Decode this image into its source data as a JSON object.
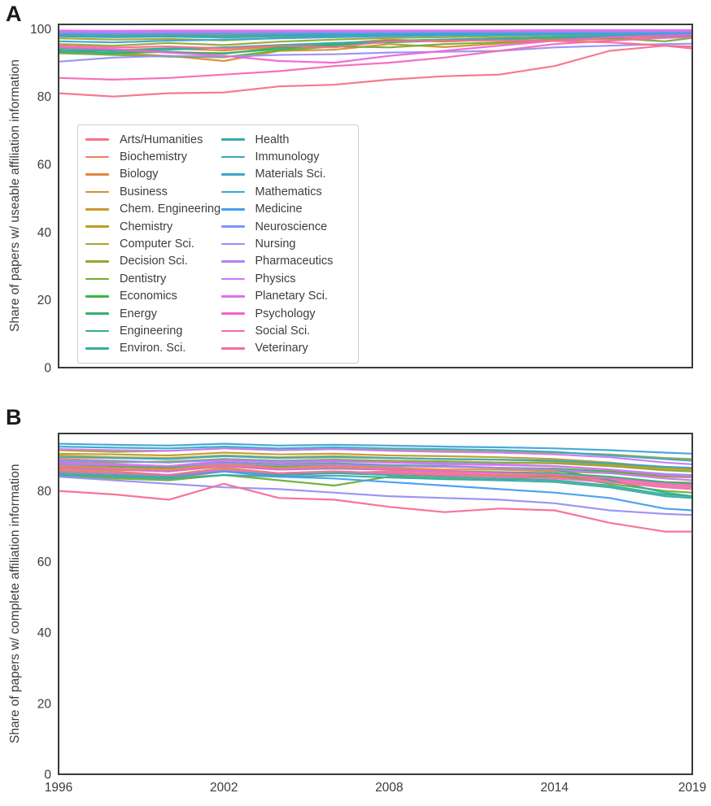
{
  "figure": {
    "panel_a": {
      "letter": "A"
    },
    "panel_b": {
      "letter": "B"
    },
    "colors": {
      "axis_border": "#3a3a3a",
      "text": "#3b3b3b",
      "legend_border": "#cccccc",
      "background": "#ffffff"
    }
  },
  "chart_data": [
    {
      "id": "panel_a",
      "type": "line",
      "title": "",
      "xlabel": "",
      "ylabel": "Share of papers w/ useable affiliation information",
      "grid": false,
      "legend_position": "upper left inside plot",
      "x": [
        1996,
        1998,
        2000,
        2002,
        2004,
        2006,
        2008,
        2010,
        2012,
        2014,
        2016,
        2018,
        2019
      ],
      "xlim": [
        1996,
        2019
      ],
      "ylim": [
        0,
        101.3
      ],
      "yticks": [
        0,
        20,
        40,
        60,
        80,
        100
      ],
      "xticks": [],
      "series": [
        {
          "name": "Arts/Humanities",
          "color": "#f77189",
          "values": [
            81,
            80,
            81,
            81.2,
            83,
            83.5,
            85,
            86,
            86.5,
            89,
            93.5,
            95,
            94.8
          ]
        },
        {
          "name": "Biochemistry",
          "color": "#ef7e5e",
          "values": [
            98.5,
            98.4,
            98.5,
            98.5,
            98.6,
            98.6,
            98.7,
            98.7,
            98.8,
            98.8,
            98.8,
            98.9,
            98.9
          ]
        },
        {
          "name": "Biology",
          "color": "#e5863b",
          "values": [
            94.5,
            93.8,
            94.2,
            93.6,
            94.8,
            95.6,
            96.8,
            96.2,
            96.8,
            97.2,
            97.6,
            98,
            98
          ]
        },
        {
          "name": "Business",
          "color": "#d78f33",
          "values": [
            93,
            92.8,
            92,
            90.5,
            93.5,
            93.8,
            95.5,
            94.6,
            95.6,
            96.5,
            97,
            97.5,
            97.6
          ]
        },
        {
          "name": "Chem. Engineering",
          "color": "#c9982e",
          "values": [
            98.4,
            98.2,
            98.3,
            98.4,
            98.5,
            98.5,
            98.6,
            98.6,
            98.7,
            98.7,
            98.7,
            98.8,
            98.8
          ]
        },
        {
          "name": "Chemistry",
          "color": "#ba9e2b",
          "values": [
            99,
            98.9,
            99,
            99,
            99.1,
            99.1,
            99.1,
            99.2,
            99.2,
            99.2,
            99.2,
            99.2,
            99.2
          ]
        },
        {
          "name": "Computer Sci.",
          "color": "#a8a42d",
          "values": [
            97.2,
            96.8,
            97,
            96.6,
            97.3,
            97.8,
            98,
            98.2,
            98.3,
            98.4,
            98.5,
            98.5,
            98.5
          ]
        },
        {
          "name": "Decision Sci.",
          "color": "#92a930",
          "values": [
            95.5,
            95,
            95.8,
            95.2,
            96.2,
            96.8,
            97.3,
            97.5,
            97.8,
            98,
            98.2,
            98.3,
            98.3
          ]
        },
        {
          "name": "Dentistry",
          "color": "#70ae33",
          "values": [
            92.8,
            92.3,
            91.8,
            91.6,
            93.6,
            94.8,
            94.5,
            95.5,
            96,
            96.8,
            97.3,
            96.3,
            97.3
          ]
        },
        {
          "name": "Economics",
          "color": "#3db241",
          "values": [
            93.5,
            92.8,
            93.2,
            92.6,
            94.5,
            95,
            96.5,
            96.8,
            97.2,
            97.5,
            97.8,
            98,
            98
          ]
        },
        {
          "name": "Energy",
          "color": "#33b26f",
          "values": [
            93.2,
            93.8,
            93,
            92.8,
            94,
            95.5,
            96,
            96.5,
            97,
            97.5,
            97.8,
            98,
            98.1
          ]
        },
        {
          "name": "Engineering",
          "color": "#34af88",
          "values": [
            97.8,
            97.5,
            97.7,
            97.4,
            97.8,
            98,
            98.2,
            98.3,
            98.4,
            98.5,
            98.6,
            98.6,
            98.6
          ]
        },
        {
          "name": "Environ. Sci.",
          "color": "#36ad9a",
          "values": [
            94,
            93.5,
            94.2,
            94.5,
            95,
            95.8,
            96.3,
            96.8,
            97.2,
            97.5,
            97.8,
            98,
            98
          ]
        },
        {
          "name": "Health",
          "color": "#36aca9",
          "values": [
            93.3,
            93,
            93.8,
            94.5,
            95.2,
            95.8,
            96.2,
            96.6,
            97,
            97.4,
            97.7,
            97.9,
            98
          ]
        },
        {
          "name": "Immunology",
          "color": "#38aab9",
          "values": [
            98.2,
            98,
            98.1,
            98,
            98.2,
            98.3,
            98.4,
            98.5,
            98.5,
            98.6,
            98.6,
            98.7,
            98.7
          ]
        },
        {
          "name": "Materials Sci.",
          "color": "#39a7c9",
          "values": [
            97.9,
            97.7,
            97.8,
            97.9,
            98,
            98.2,
            98.3,
            98.4,
            98.5,
            98.5,
            98.6,
            98.6,
            98.6
          ]
        },
        {
          "name": "Mathematics",
          "color": "#3ba4da",
          "values": [
            96.3,
            96,
            96.5,
            96.8,
            97.2,
            97.5,
            97.8,
            98,
            98.2,
            98.3,
            98.4,
            98.5,
            98.5
          ]
        },
        {
          "name": "Medicine",
          "color": "#429ef0",
          "values": [
            98.7,
            98.6,
            98.7,
            98.7,
            98.8,
            98.8,
            98.9,
            98.9,
            99,
            99,
            99,
            99,
            99
          ]
        },
        {
          "name": "Neuroscience",
          "color": "#7b98f4",
          "values": [
            98.9,
            98.8,
            98.9,
            98.9,
            99,
            99,
            99,
            99.1,
            99.1,
            99.1,
            99.1,
            99.2,
            99.2
          ]
        },
        {
          "name": "Nursing",
          "color": "#988ff4",
          "values": [
            90.3,
            91.5,
            92,
            91.8,
            92.3,
            92.5,
            93,
            93.2,
            93.5,
            94.5,
            95,
            95.5,
            95.6
          ]
        },
        {
          "name": "Pharmaceutics",
          "color": "#b183f4",
          "values": [
            99.1,
            99,
            99.1,
            99.1,
            99.2,
            99.2,
            99.2,
            99.3,
            99.3,
            99.3,
            99.3,
            99.3,
            99.3
          ]
        },
        {
          "name": "Physics",
          "color": "#ca79f4",
          "values": [
            99.3,
            99.2,
            99.3,
            99.3,
            99.3,
            99.4,
            99.4,
            99.4,
            99.4,
            99.4,
            99.4,
            99.4,
            99.4
          ]
        },
        {
          "name": "Planetary Sci.",
          "color": "#e16df3",
          "values": [
            99.5,
            99.4,
            99.5,
            99.5,
            99.5,
            99.5,
            99.5,
            99.5,
            99.5,
            99.6,
            99.6,
            99.6,
            99.6
          ]
        },
        {
          "name": "Psychology",
          "color": "#f263d3",
          "values": [
            94.5,
            94,
            93,
            92,
            90.5,
            90,
            92,
            93.5,
            95,
            96.5,
            97.5,
            98,
            98.2
          ]
        },
        {
          "name": "Social Sci.",
          "color": "#f668b5",
          "values": [
            85.5,
            85,
            85.5,
            86.5,
            87.5,
            89,
            90,
            91.5,
            93.5,
            95.5,
            96.5,
            97.3,
            97.5
          ]
        },
        {
          "name": "Veterinary",
          "color": "#f76d95",
          "values": [
            95,
            94.5,
            94.8,
            94.2,
            95,
            94.5,
            96.3,
            96.5,
            96.6,
            96.4,
            96,
            95,
            94.2
          ]
        }
      ]
    },
    {
      "id": "panel_b",
      "type": "line",
      "title": "",
      "xlabel": "",
      "ylabel": "Share of papers w/ complete affiliation information",
      "grid": false,
      "legend_position": "none",
      "x": [
        1996,
        1998,
        2000,
        2002,
        2004,
        2006,
        2008,
        2010,
        2012,
        2014,
        2016,
        2018,
        2019
      ],
      "xlim": [
        1996,
        2019
      ],
      "ylim": [
        0,
        96.2
      ],
      "yticks": [
        0,
        20,
        40,
        60,
        80
      ],
      "xticks": [
        1996,
        2002,
        2008,
        2014,
        2019
      ],
      "series": [
        {
          "name": "Arts/Humanities",
          "color": "#f77189",
          "values": [
            84.5,
            84,
            83.5,
            85.5,
            84.5,
            85,
            85.5,
            85,
            84.5,
            84,
            83,
            81.5,
            81
          ]
        },
        {
          "name": "Biochemistry",
          "color": "#ef7e5e",
          "values": [
            89,
            88.5,
            88,
            89,
            88.5,
            88.8,
            88.5,
            88.3,
            88,
            87.8,
            87.3,
            86.5,
            86.3
          ]
        },
        {
          "name": "Biology",
          "color": "#e5863b",
          "values": [
            87,
            86.5,
            86,
            87.5,
            86.5,
            87,
            86.5,
            86,
            86,
            85.5,
            85,
            84,
            83.8
          ]
        },
        {
          "name": "Business",
          "color": "#d78f33",
          "values": [
            86,
            85.5,
            84.5,
            86.5,
            85,
            85.5,
            85,
            84.5,
            84.3,
            84,
            83.5,
            82.5,
            82.3
          ]
        },
        {
          "name": "Chem. Engineering",
          "color": "#c9982e",
          "values": [
            90,
            89.5,
            89.3,
            90,
            89.5,
            89.8,
            89.3,
            89,
            88.8,
            88.3,
            87.5,
            86,
            85.5
          ]
        },
        {
          "name": "Chemistry",
          "color": "#ba9e2b",
          "values": [
            90.5,
            90.3,
            90,
            90.8,
            90.3,
            90.5,
            90,
            89.8,
            89.5,
            89,
            88,
            86.5,
            86
          ]
        },
        {
          "name": "Computer Sci.",
          "color": "#a8a42d",
          "values": [
            91.5,
            91,
            91.3,
            92,
            91.5,
            91.8,
            91.5,
            91.3,
            91,
            90.8,
            90.3,
            89.3,
            89
          ]
        },
        {
          "name": "Decision Sci.",
          "color": "#92a930",
          "values": [
            88.5,
            88,
            88.3,
            89,
            88.5,
            88.8,
            88.5,
            88.3,
            88,
            87.8,
            87,
            85.8,
            85.5
          ]
        },
        {
          "name": "Dentistry",
          "color": "#70ae33",
          "values": [
            84,
            83.5,
            83,
            84.5,
            83,
            81.5,
            84,
            83.5,
            83,
            84.5,
            82,
            80,
            79.5
          ]
        },
        {
          "name": "Economics",
          "color": "#3db241",
          "values": [
            87.5,
            87,
            86.5,
            88,
            87,
            87.5,
            87,
            86.8,
            86.5,
            86.3,
            85.5,
            84.3,
            84
          ]
        },
        {
          "name": "Energy",
          "color": "#33b26f",
          "values": [
            86.5,
            86,
            85.5,
            87,
            86,
            86.3,
            86,
            85.5,
            85.3,
            85,
            84,
            82.5,
            82
          ]
        },
        {
          "name": "Engineering",
          "color": "#34af88",
          "values": [
            88,
            87.5,
            87,
            88,
            87.5,
            87.8,
            87.3,
            87,
            86.5,
            86,
            83,
            79.5,
            78.5
          ]
        },
        {
          "name": "Environ. Sci.",
          "color": "#36ad9a",
          "values": [
            85,
            84.5,
            84,
            85.5,
            84.5,
            85,
            84.5,
            84,
            83.5,
            83,
            81.5,
            79,
            78.5
          ]
        },
        {
          "name": "Health",
          "color": "#36aca9",
          "values": [
            84.5,
            84,
            83.5,
            84.5,
            84,
            84.3,
            83.8,
            83.3,
            83,
            82.5,
            81,
            78.5,
            78
          ]
        },
        {
          "name": "Immunology",
          "color": "#38aab9",
          "values": [
            89.5,
            89.3,
            89,
            89.8,
            89.3,
            89.5,
            89.3,
            89,
            88.8,
            88.5,
            87.8,
            86.8,
            86.5
          ]
        },
        {
          "name": "Materials Sci.",
          "color": "#39a7c9",
          "values": [
            92.5,
            92.2,
            92,
            92.5,
            92,
            92.3,
            92,
            91.8,
            91.5,
            91,
            90,
            89,
            88.5
          ]
        },
        {
          "name": "Mathematics",
          "color": "#3ba4da",
          "values": [
            93.3,
            93,
            92.8,
            93.3,
            92.8,
            93,
            92.8,
            92.5,
            92.3,
            92,
            91.5,
            90.8,
            90.5
          ]
        },
        {
          "name": "Medicine",
          "color": "#429ef0",
          "values": [
            85.5,
            85,
            84.5,
            85.5,
            84,
            83.5,
            82.5,
            81.5,
            80.5,
            79.5,
            78,
            75,
            74.5
          ]
        },
        {
          "name": "Neuroscience",
          "color": "#7b98f4",
          "values": [
            88.5,
            88.3,
            88,
            88.8,
            88.3,
            88.5,
            88,
            87.8,
            87.5,
            87,
            86,
            84.8,
            84.5
          ]
        },
        {
          "name": "Nursing",
          "color": "#988ff4",
          "values": [
            84,
            83,
            82,
            81,
            80.5,
            79.5,
            78.5,
            78,
            77.5,
            76.5,
            74.5,
            73.5,
            73.2
          ]
        },
        {
          "name": "Pharmaceutics",
          "color": "#b183f4",
          "values": [
            87.5,
            87.3,
            87,
            87.8,
            87.3,
            87.5,
            87,
            86.8,
            86.5,
            86,
            85,
            83.5,
            83
          ]
        },
        {
          "name": "Physics",
          "color": "#ca79f4",
          "values": [
            91.8,
            91.5,
            91.3,
            92,
            91.5,
            91.8,
            91.3,
            91,
            90.8,
            90.3,
            89.5,
            88,
            87.5
          ]
        },
        {
          "name": "Planetary Sci.",
          "color": "#e16df3",
          "values": [
            88,
            87.5,
            87,
            88.5,
            88,
            88.3,
            88,
            87.5,
            87.3,
            87,
            86,
            84.5,
            84
          ]
        },
        {
          "name": "Psychology",
          "color": "#f263d3",
          "values": [
            86.5,
            86,
            85.5,
            87,
            86,
            86.5,
            86,
            85.5,
            85,
            84.5,
            83.5,
            82,
            81.5
          ]
        },
        {
          "name": "Social Sci.",
          "color": "#f668b5",
          "values": [
            85.5,
            85,
            84.5,
            86,
            85,
            85.5,
            85,
            84.5,
            84,
            83.5,
            82.5,
            81,
            80.5
          ]
        },
        {
          "name": "Veterinary",
          "color": "#f76d95",
          "values": [
            80,
            79,
            77.5,
            82,
            78,
            77.5,
            75.5,
            74,
            75,
            74.5,
            71,
            68.5,
            68.5
          ]
        }
      ]
    }
  ]
}
